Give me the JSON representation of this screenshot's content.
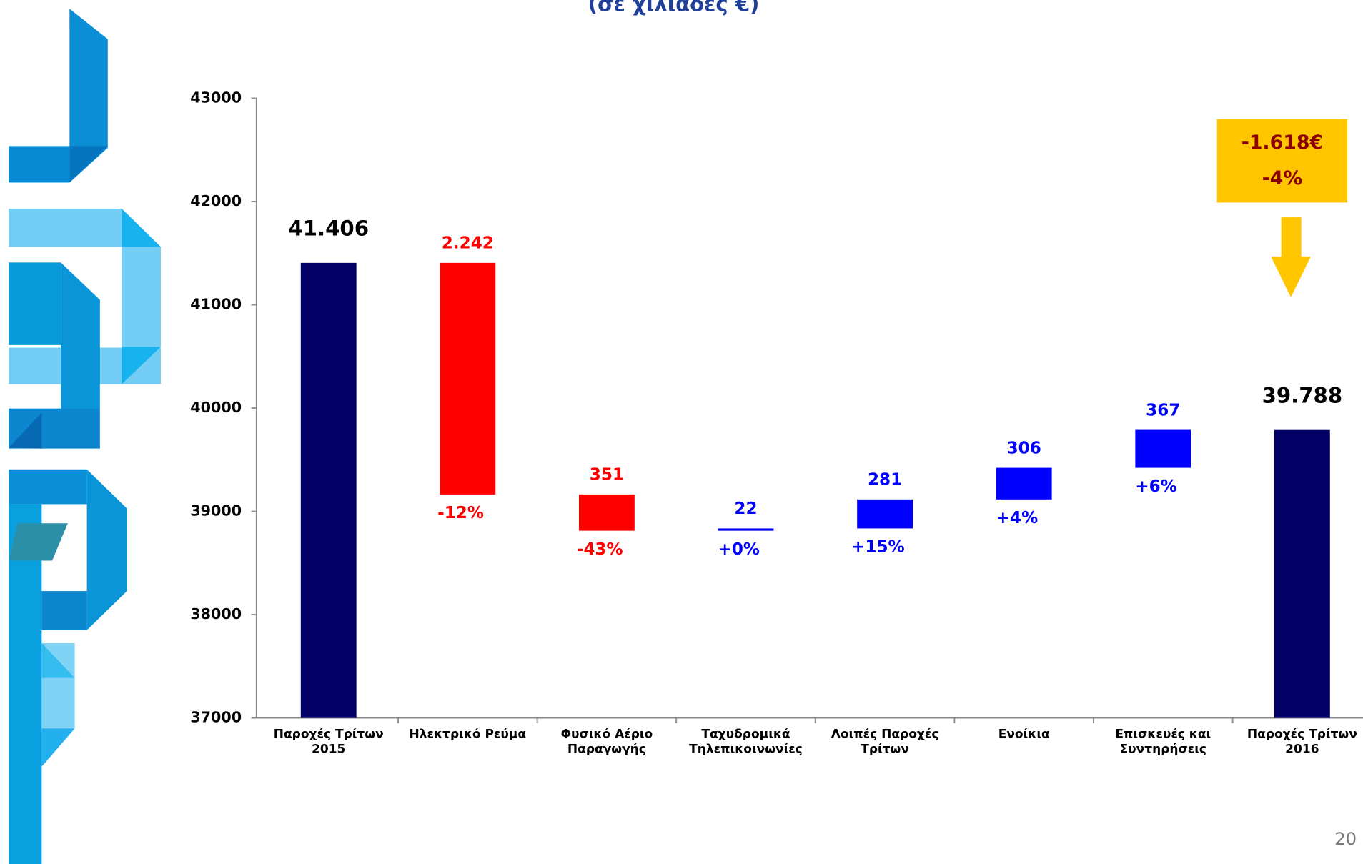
{
  "chart_data": {
    "type": "waterfall",
    "subtitle": "(σε χιλιάδες €)",
    "categories": [
      [
        "Παροχές Τρίτων",
        "2015"
      ],
      [
        "Ηλεκτρικό Ρεύμα"
      ],
      [
        "Φυσικό Αέριο",
        "Παραγωγής"
      ],
      [
        "Ταχυδρομικά",
        "Τηλεπικοινωνίες"
      ],
      [
        "Λοιπές Παροχές",
        "Τρίτων"
      ],
      [
        "Ενοίκια"
      ],
      [
        "Επισκευές και",
        "Συντηρήσεις"
      ],
      [
        "Παροχές Τρίτων",
        "2016"
      ]
    ],
    "measure": [
      "absolute",
      "relative",
      "relative",
      "relative",
      "relative",
      "relative",
      "relative",
      "absolute"
    ],
    "values": [
      41406,
      -2242,
      -351,
      22,
      281,
      306,
      367,
      39788
    ],
    "value_labels": [
      "41.406",
      "2.242",
      "351",
      "22",
      "281",
      "306",
      "367",
      "39.788"
    ],
    "change_pct": [
      null,
      -12,
      -43,
      0,
      15,
      4,
      6,
      null
    ],
    "change_pct_labels": [
      null,
      "-12%",
      "-43%",
      "+0%",
      "+15%",
      "+4%",
      "+6%",
      null
    ],
    "colors": [
      "#000066",
      "#ff0000",
      "#ff0000",
      "#0000ff",
      "#0000ff",
      "#0000ff",
      "#0000ff",
      "#000066"
    ],
    "ylim": [
      37000,
      43000
    ],
    "yticks": [
      37000,
      38000,
      39000,
      40000,
      41000,
      42000,
      43000
    ],
    "annotation": {
      "total_change_label": "-1.618€",
      "total_change_pct_label": "-4%"
    },
    "page_number": "20"
  }
}
